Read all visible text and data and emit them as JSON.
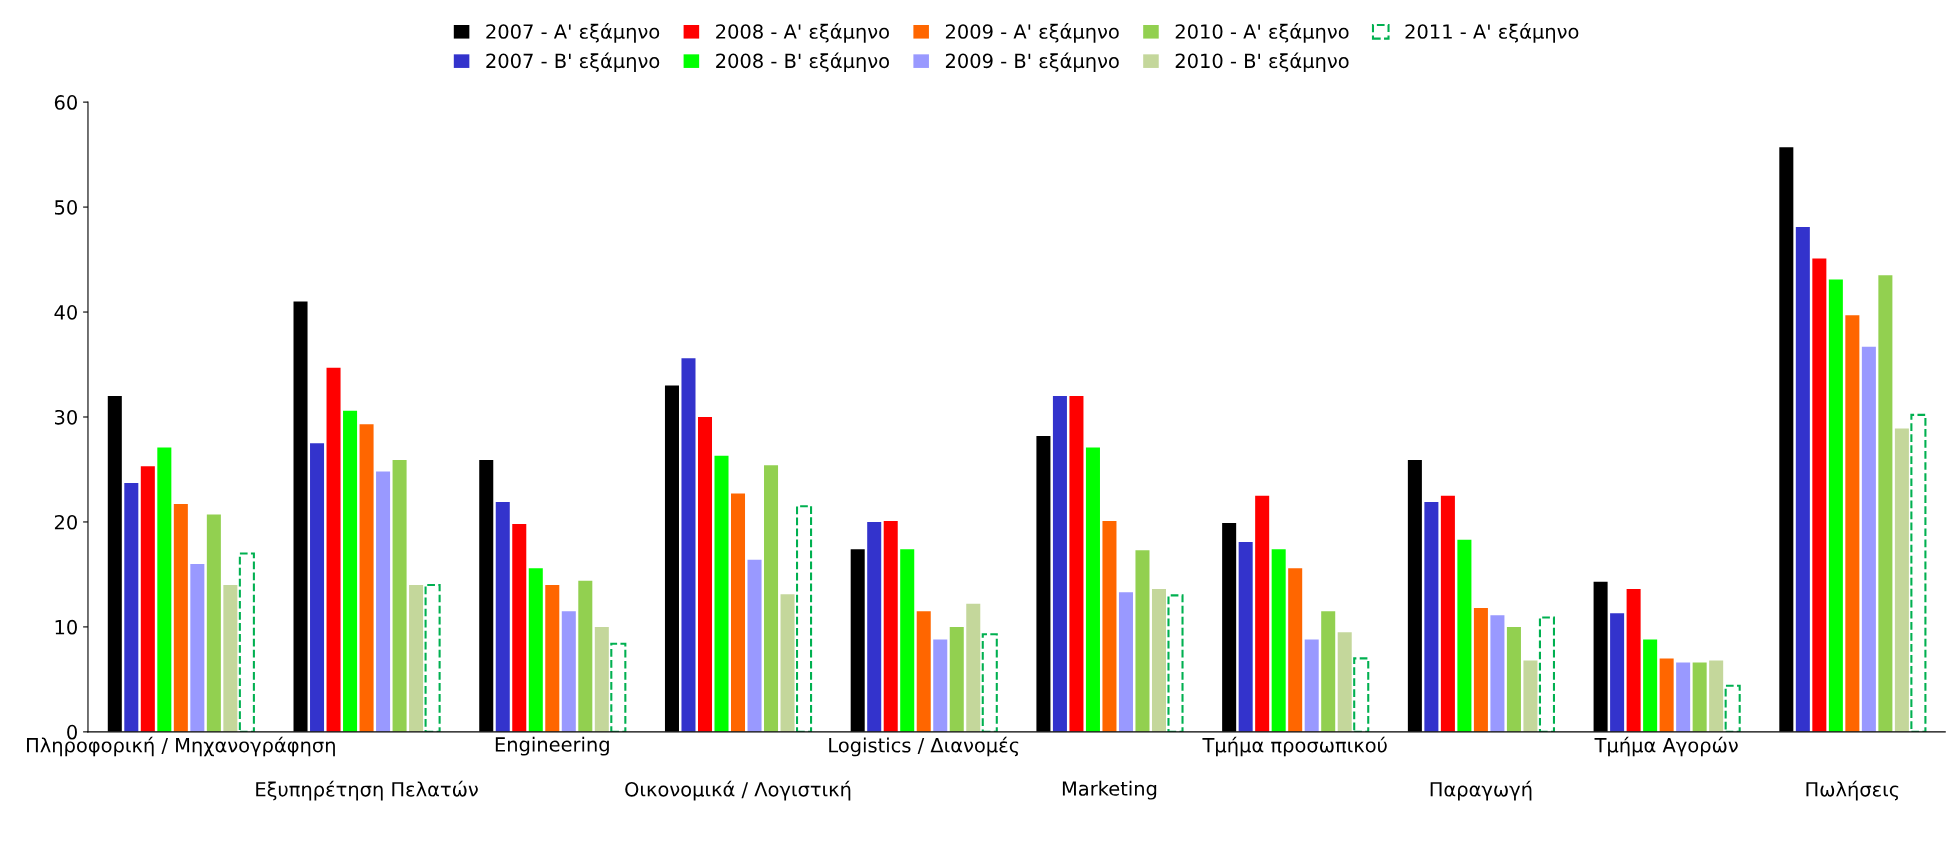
{
  "chart_data": {
    "type": "bar",
    "categories": [
      "Πληροφορική / Μηχανογράφηση",
      "Εξυπηρέτηση Πελατών",
      "Engineering",
      "Οικονομικά / Λογιστική",
      "Logistics / Διανομές",
      "Marketing",
      "Τμήμα προσωπικού",
      "Παραγωγή",
      "Τμήμα Αγορών",
      "Πωλήσεις"
    ],
    "series": [
      {
        "name": "2007 - A' εξάμηνο",
        "color": "#000000",
        "values": [
          32,
          41,
          25.9,
          33,
          17.4,
          28.2,
          19.9,
          25.9,
          14.3,
          55.7
        ]
      },
      {
        "name": "2007 - B' εξάμηνο",
        "color": "#3333cc",
        "values": [
          23.7,
          27.5,
          21.9,
          35.6,
          20,
          32,
          18.1,
          21.9,
          11.3,
          48.1
        ]
      },
      {
        "name": "2008 - A' εξάμηνο",
        "color": "#ff0000",
        "values": [
          25.3,
          34.7,
          19.8,
          30,
          20.1,
          32,
          22.5,
          22.5,
          13.6,
          45.1
        ]
      },
      {
        "name": "2008 - B' εξάμηνο",
        "color": "#00ff00",
        "values": [
          27.1,
          30.6,
          15.6,
          26.3,
          17.4,
          27.1,
          17.4,
          18.3,
          8.8,
          43.1
        ]
      },
      {
        "name": "2009 - A' εξάμηνο",
        "color": "#ff6600",
        "values": [
          21.7,
          29.3,
          14,
          22.7,
          11.5,
          20.1,
          15.6,
          11.8,
          7,
          39.7
        ]
      },
      {
        "name": "2009 - B' εξάμηνο",
        "color": "#9999ff",
        "values": [
          16,
          24.8,
          11.5,
          16.4,
          8.8,
          13.3,
          8.8,
          11.1,
          6.6,
          36.7
        ]
      },
      {
        "name": "2010 - A' εξάμηνο",
        "color": "#92d050",
        "values": [
          20.7,
          25.9,
          14.4,
          25.4,
          10,
          17.3,
          11.5,
          10,
          6.6,
          43.5
        ]
      },
      {
        "name": "2010 - B' εξάμηνο",
        "color": "#c4d79b",
        "values": [
          14,
          14,
          10,
          13.1,
          12.2,
          13.6,
          9.5,
          6.8,
          6.8,
          28.9
        ]
      },
      {
        "name": "2011 - A' εξάμηνο",
        "color": "#00b050",
        "line_style": "dashed",
        "values": [
          17,
          14,
          8.4,
          21.5,
          9.3,
          13,
          7,
          10.9,
          4.4,
          30.2
        ]
      }
    ],
    "ylim": [
      0,
      60
    ],
    "yticks": [
      0,
      10,
      20,
      30,
      40,
      50,
      60
    ],
    "grid": false,
    "legend": "top"
  }
}
